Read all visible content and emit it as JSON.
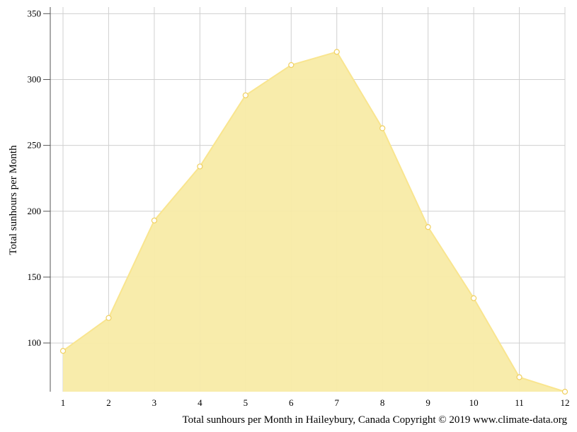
{
  "chart_data": {
    "type": "area",
    "title": "",
    "xlabel": "",
    "ylabel": "Total sunhours per Month",
    "caption": "Total sunhours per Month in Haileybury, Canada Copyright © 2019 www.climate-data.org",
    "x": [
      1,
      2,
      3,
      4,
      5,
      6,
      7,
      8,
      9,
      10,
      11,
      12
    ],
    "x_tick_labels": [
      "1",
      "2",
      "3",
      "4",
      "5",
      "6",
      "7",
      "8",
      "9",
      "10",
      "11",
      "12"
    ],
    "series": [
      {
        "values": [
          94,
          119,
          193,
          234,
          288,
          311,
          321,
          263,
          188,
          134,
          74,
          63
        ]
      }
    ],
    "y_ticks": [
      100,
      150,
      200,
      250,
      300,
      350
    ],
    "y_tick_labels": [
      "100",
      "150",
      "200",
      "250",
      "300",
      "350"
    ],
    "xlim": [
      1,
      12
    ],
    "ylim": [
      63,
      355
    ],
    "grid": true,
    "legend": "none",
    "colors": {
      "fill": "#f8eba6",
      "line": "#f9e58f",
      "marker_fill": "#ffffff",
      "marker_stroke": "#f0d060",
      "grid": "#d0d0d0",
      "axis": "#555555"
    }
  }
}
